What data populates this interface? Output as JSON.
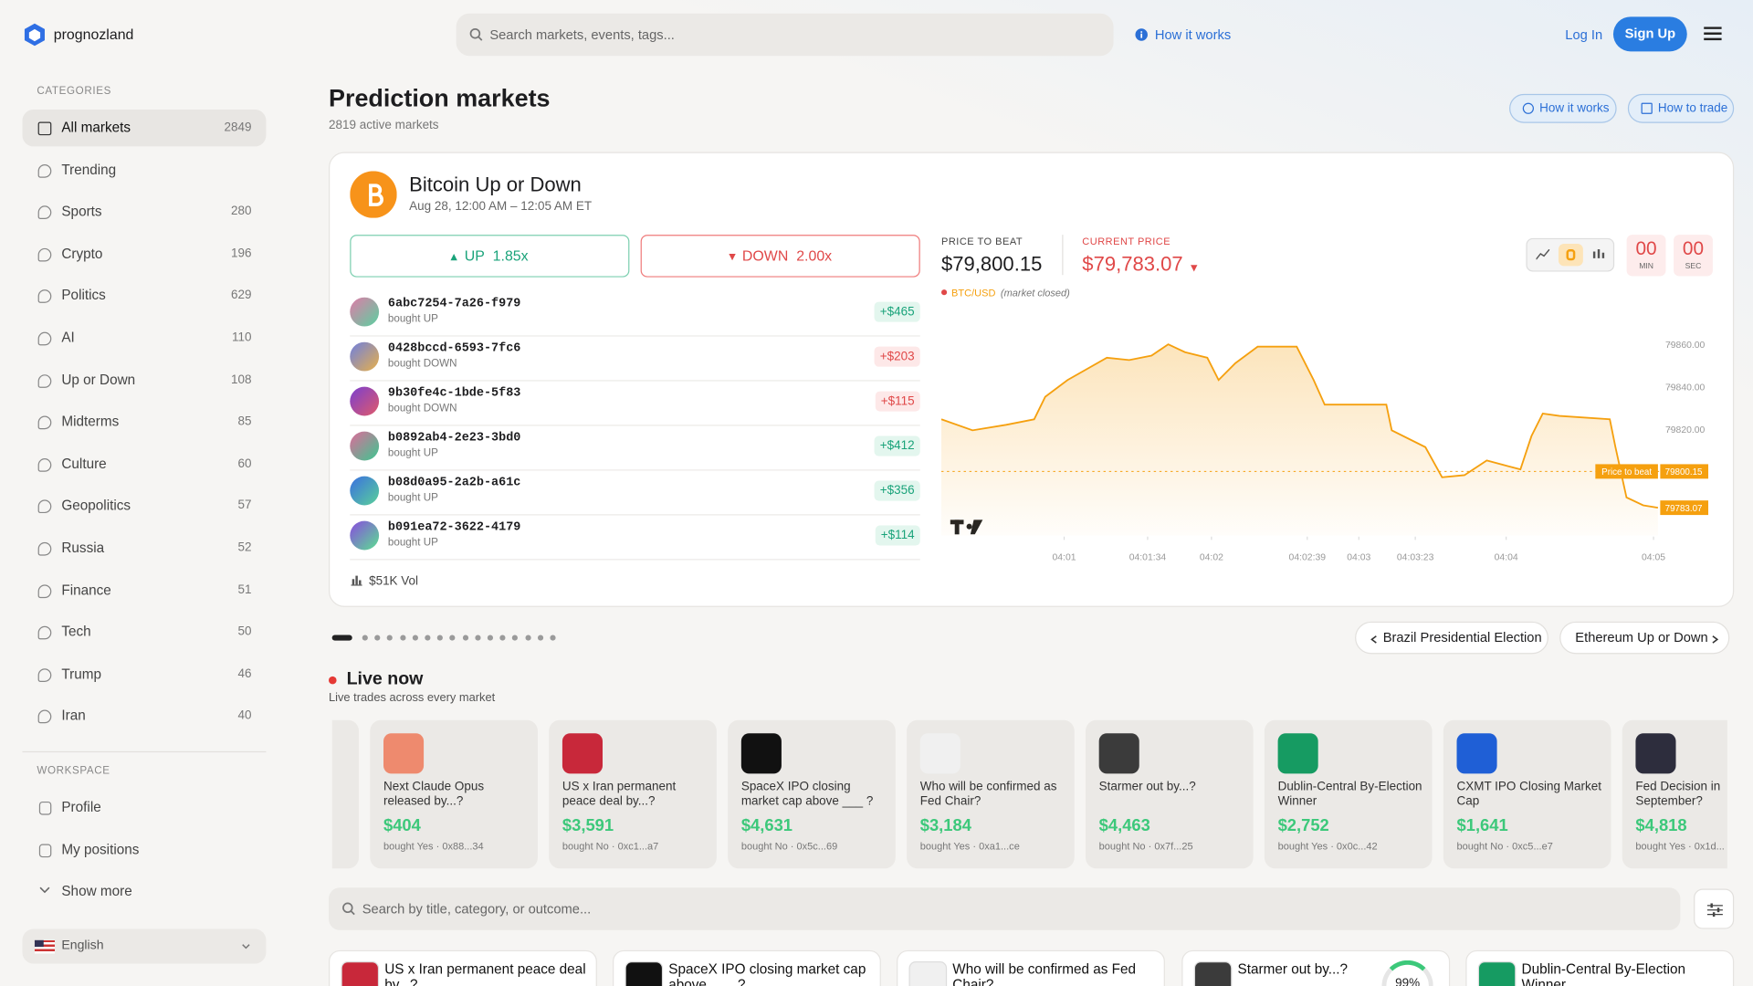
{
  "header": {
    "brand": "prognozland",
    "search_placeholder": "Search markets, events, tags...",
    "how_it_works": "How it works",
    "login": "Log In",
    "signup": "Sign Up"
  },
  "sidebar": {
    "categories_title": "CATEGORIES",
    "categories": [
      {
        "name": "All markets",
        "count": 2849
      },
      {
        "name": "Trending"
      },
      {
        "name": "Sports",
        "count": 280
      },
      {
        "name": "Crypto",
        "count": 196
      },
      {
        "name": "Politics",
        "count": 629
      },
      {
        "name": "AI",
        "count": 110
      },
      {
        "name": "Up or Down",
        "count": 108
      },
      {
        "name": "Midterms",
        "count": 85
      },
      {
        "name": "Culture",
        "count": 60
      },
      {
        "name": "Geopolitics",
        "count": 57
      },
      {
        "name": "Russia",
        "count": 52
      },
      {
        "name": "Finance",
        "count": 51
      },
      {
        "name": "Tech",
        "count": 50
      },
      {
        "name": "Trump",
        "count": 46
      },
      {
        "name": "Iran",
        "count": 40
      }
    ],
    "workspace_title": "WORKSPACE",
    "workspace": [
      "Profile",
      "My positions"
    ],
    "show_more": "Show more",
    "language": "English"
  },
  "main": {
    "title": "Prediction markets",
    "subtitle": "2819 active markets",
    "buttons": [
      "How it works",
      "How to trade"
    ]
  },
  "featured": {
    "title": "Bitcoin Up or Down",
    "time": "Aug 28, 12:00 AM – 12:05 AM ET",
    "up": {
      "label": "UP",
      "multiplier": "1.85x"
    },
    "down": {
      "label": "DOWN",
      "multiplier": "2.00x"
    },
    "trades": [
      {
        "id": "6abc7254-7a26-f979",
        "action": "bought UP",
        "amount": "+$465"
      },
      {
        "id": "0428bccd-6593-7fc6",
        "action": "bought DOWN",
        "amount": "+$203"
      },
      {
        "id": "9b30fe4c-1bde-5f83",
        "action": "bought DOWN",
        "amount": "+$115"
      },
      {
        "id": "b0892ab4-2e23-3bd0",
        "action": "bought UP",
        "amount": "+$412"
      },
      {
        "id": "b08d0a95-2a2b-a61c",
        "action": "bought UP",
        "amount": "+$356"
      },
      {
        "id": "b091ea72-3622-4179",
        "action": "bought UP",
        "amount": "+$114"
      }
    ],
    "volume": "$51K Vol",
    "price_to_beat_label": "PRICE TO BEAT",
    "price_to_beat": "$79,800.15",
    "current_price_label": "CURRENT PRICE",
    "current_price": "$79,783.07",
    "pair": "BTC/USD",
    "status": "(market closed)",
    "timer": [
      {
        "value": "00",
        "unit": "MIN"
      },
      {
        "value": "00",
        "unit": "SEC"
      }
    ]
  },
  "chart_data": {
    "type": "line",
    "color": "#f5a00f",
    "x": [
      10,
      22.7,
      36.4,
      47.8,
      52.3,
      61.4,
      77.4,
      86.5,
      95.6,
      102.4,
      109.2,
      118.3,
      122.9,
      129.7,
      138.8,
      154.7,
      161.6,
      166.1,
      191.2,
      193.4,
      207.1,
      213.9,
      223,
      232.1,
      245.8,
      250.3,
      254.9,
      261.7,
      282.2,
      284.5,
      289,
      295.8,
      301.8
    ],
    "values": [
      79824.7,
      79819.5,
      79822.1,
      79824.7,
      79835.3,
      79843.2,
      79853.7,
      79852.6,
      79854.7,
      79860.0,
      79856.3,
      79853.7,
      79843.2,
      79851.1,
      79858.9,
      79858.9,
      79843.2,
      79831.6,
      79831.6,
      79819.5,
      79811.6,
      79797.4,
      79798.4,
      79805.3,
      79801.1,
      79816.8,
      79827.4,
      79826.3,
      79824.7,
      79811.6,
      79787.9,
      79784.2,
      79783.07
    ],
    "xlim": [
      10,
      305
    ],
    "ylim": [
      79770,
      79865
    ],
    "xticks": [
      {
        "value": 60,
        "label": "04:01"
      },
      {
        "value": 94,
        "label": "04:01:34"
      },
      {
        "value": 120,
        "label": "04:02"
      },
      {
        "value": 159,
        "label": "04:02:39"
      },
      {
        "value": 180,
        "label": "04:03"
      },
      {
        "value": 203,
        "label": "04:03:23"
      },
      {
        "value": 240,
        "label": "04:04"
      },
      {
        "value": 300,
        "label": "04:05"
      }
    ],
    "yticks": [
      {
        "value": 79860,
        "label": "79860.00"
      },
      {
        "value": 79840,
        "label": "79840.00"
      },
      {
        "value": 79820,
        "label": "79820.00"
      }
    ],
    "price_line": 79800.15,
    "price_line_label": "Price to beat"
  },
  "carousel": {
    "prev": "Brazil Presidential Election",
    "next": "Ethereum Up or Down"
  },
  "live": {
    "title": "Live now",
    "subtitle": "Live trades across every market",
    "cards": [
      {
        "title": "Next Claude Opus released by...?",
        "amount": "$404",
        "meta": "bought Yes · 0x88...34"
      },
      {
        "title": "US x Iran permanent peace deal by...?",
        "amount": "$3,591",
        "meta": "bought No · 0xc1...a7"
      },
      {
        "title": "SpaceX IPO closing market cap above ___ ?",
        "amount": "$4,631",
        "meta": "bought No · 0x5c...69"
      },
      {
        "title": "Who will be confirmed as Fed Chair?",
        "amount": "$3,184",
        "meta": "bought Yes · 0xa1...ce"
      },
      {
        "title": "Starmer out by...?",
        "amount": "$4,463",
        "meta": "bought No · 0x7f...25"
      },
      {
        "title": "Dublin-Central By-Election Winner",
        "amount": "$2,752",
        "meta": "bought Yes · 0x0c...42"
      },
      {
        "title": "CXMT IPO Closing Market Cap",
        "amount": "$1,641",
        "meta": "bought No · 0xc5...e7"
      },
      {
        "title": "Fed Decision in September?",
        "amount": "$4,818",
        "meta": "bought Yes · 0x1d..."
      }
    ]
  },
  "search2": "Search by title, category, or outcome...",
  "markets": [
    {
      "title": "US x Iran permanent peace deal by...?"
    },
    {
      "title": "SpaceX IPO closing market cap above ___ ?"
    },
    {
      "title": "Who will be confirmed as Fed Chair?"
    },
    {
      "title": "Starmer out by...?",
      "chance": "99%"
    },
    {
      "title": "Dublin-Central By-Election Winner"
    }
  ]
}
